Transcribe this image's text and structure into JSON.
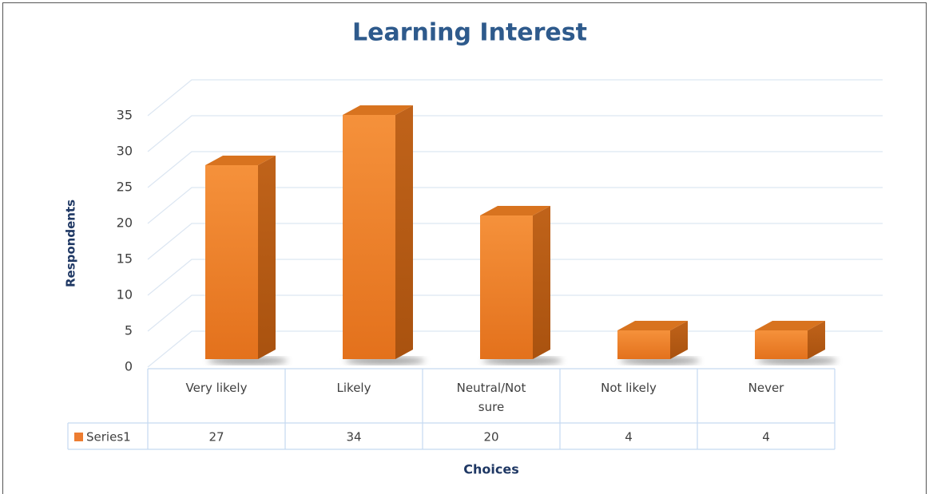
{
  "chart_data": {
    "type": "bar3d",
    "title": "Learning Interest",
    "categories": [
      "Very likely",
      "Likely",
      "Neutral/Not sure",
      "Not likely",
      "Never"
    ],
    "series": [
      {
        "name": "Series1",
        "color": "#ed7d31",
        "values": [
          27,
          34,
          20,
          4,
          4
        ]
      }
    ],
    "ylim": [
      0,
      35
    ],
    "yticks": [
      0,
      5,
      10,
      15,
      20,
      25,
      30,
      35
    ],
    "ylabel": "Respondents",
    "xlabel": "Choices",
    "grid": true,
    "data_table": true
  }
}
